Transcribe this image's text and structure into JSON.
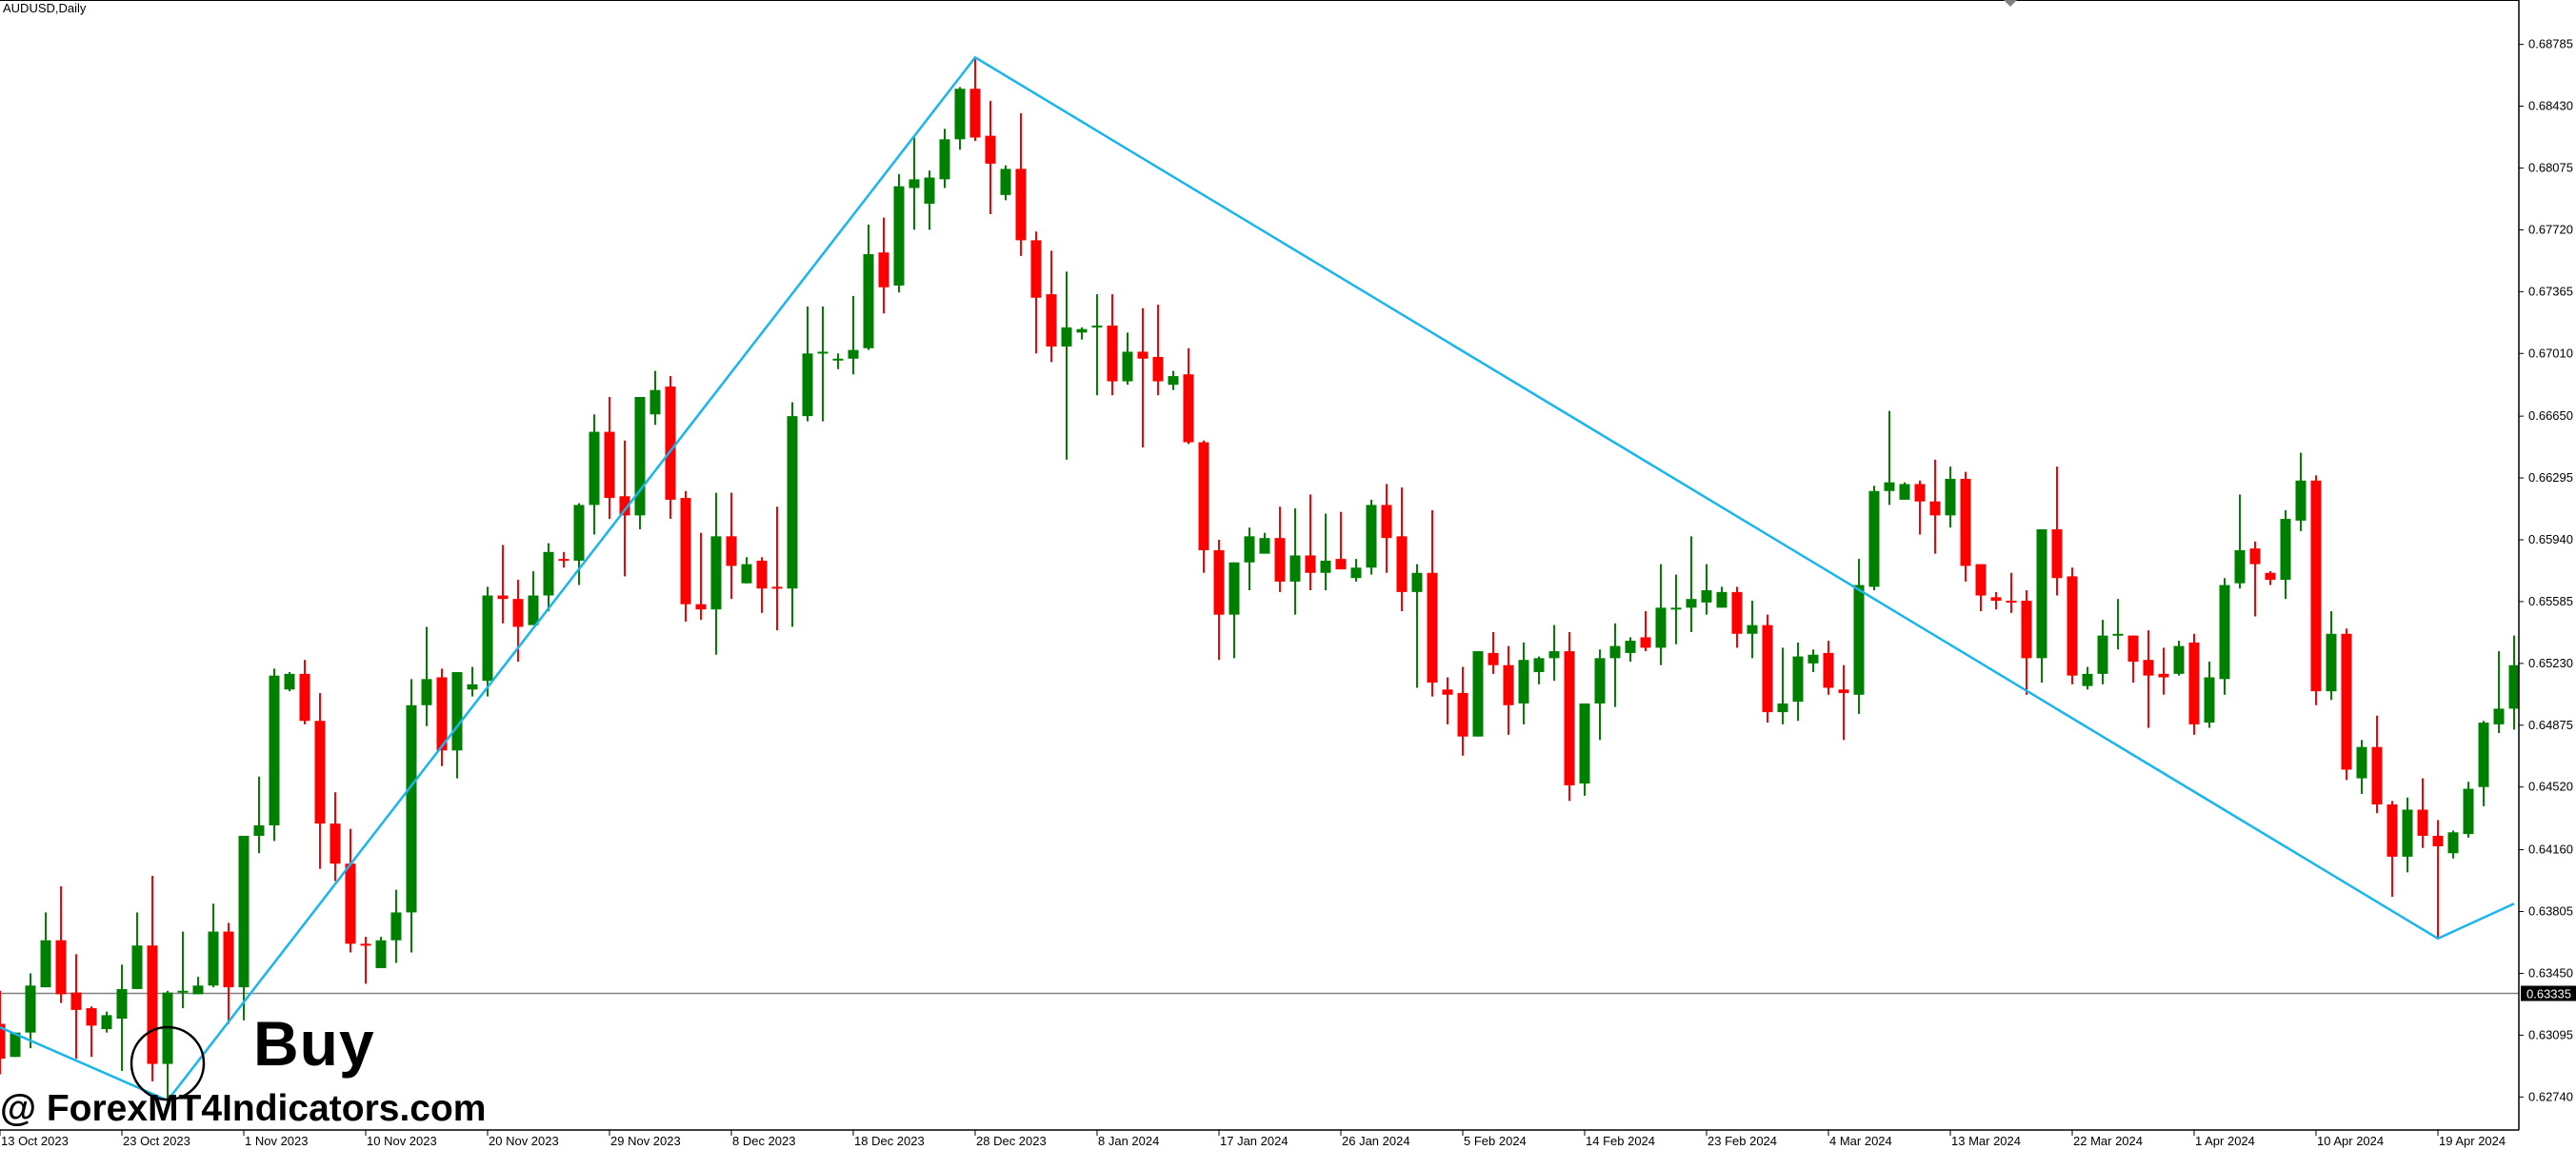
{
  "header": {
    "title": "AUDUSD,Daily"
  },
  "annotations": {
    "signal_label": "Buy",
    "watermark": "@ ForexMT4Indicators.com"
  },
  "colors": {
    "bull": "#008000",
    "bear": "#FF0000",
    "zigzag": "#17B6EE",
    "current_price_line": "#808080",
    "axis": "#000000"
  },
  "chart_data": {
    "type": "candlestick",
    "symbol": "AUDUSD",
    "timeframe": "Daily",
    "ylim": [
      0.6258,
      0.69
    ],
    "grid": false,
    "current_price": "0.63335",
    "current_price_value": 0.63335,
    "y_ticks": [
      "0.68785",
      "0.68430",
      "0.68075",
      "0.67720",
      "0.67365",
      "0.67010",
      "0.66650",
      "0.66295",
      "0.65940",
      "0.65585",
      "0.65230",
      "0.64875",
      "0.64520",
      "0.64160",
      "0.63805",
      "0.63450",
      "0.63095",
      "0.62740"
    ],
    "x_ticks": [
      {
        "label": "13 Oct 2023",
        "date": "2023-10-13"
      },
      {
        "label": "23 Oct 2023",
        "date": "2023-10-23"
      },
      {
        "label": "1 Nov 2023",
        "date": "2023-11-01"
      },
      {
        "label": "10 Nov 2023",
        "date": "2023-11-10"
      },
      {
        "label": "20 Nov 2023",
        "date": "2023-11-20"
      },
      {
        "label": "29 Nov 2023",
        "date": "2023-11-29"
      },
      {
        "label": "8 Dec 2023",
        "date": "2023-12-08"
      },
      {
        "label": "18 Dec 2023",
        "date": "2023-12-18"
      },
      {
        "label": "28 Dec 2023",
        "date": "2023-12-28"
      },
      {
        "label": "8 Jan 2024",
        "date": "2024-01-08"
      },
      {
        "label": "17 Jan 2024",
        "date": "2024-01-17"
      },
      {
        "label": "26 Jan 2024",
        "date": "2024-01-26"
      },
      {
        "label": "5 Feb 2024",
        "date": "2024-02-05"
      },
      {
        "label": "14 Feb 2024",
        "date": "2024-02-14"
      },
      {
        "label": "23 Feb 2024",
        "date": "2024-02-23"
      },
      {
        "label": "4 Mar 2024",
        "date": "2024-03-04"
      },
      {
        "label": "13 Mar 2024",
        "date": "2024-03-13"
      },
      {
        "label": "22 Mar 2024",
        "date": "2024-03-22"
      },
      {
        "label": "1 Apr 2024",
        "date": "2024-04-01"
      },
      {
        "label": "10 Apr 2024",
        "date": "2024-04-10"
      },
      {
        "label": "19 Apr 2024",
        "date": "2024-04-19"
      }
    ],
    "dates": [
      "2023-10-13",
      "2023-10-15",
      "2023-10-16",
      "2023-10-17",
      "2023-10-18",
      "2023-10-19",
      "2023-10-20",
      "2023-10-22",
      "2023-10-23",
      "2023-10-24",
      "2023-10-25",
      "2023-10-26",
      "2023-10-27",
      "2023-10-29",
      "2023-10-30",
      "2023-10-31",
      "2023-11-01",
      "2023-11-02",
      "2023-11-03",
      "2023-11-05",
      "2023-11-06",
      "2023-11-07",
      "2023-11-08",
      "2023-11-09",
      "2023-11-10",
      "2023-11-12",
      "2023-11-13",
      "2023-11-14",
      "2023-11-15",
      "2023-11-16",
      "2023-11-17",
      "2023-11-19",
      "2023-11-20",
      "2023-11-21",
      "2023-11-22",
      "2023-11-23",
      "2023-11-24",
      "2023-11-26",
      "2023-11-27",
      "2023-11-28",
      "2023-11-29",
      "2023-11-30",
      "2023-12-01",
      "2023-12-03",
      "2023-12-04",
      "2023-12-05",
      "2023-12-06",
      "2023-12-07",
      "2023-12-08",
      "2023-12-10",
      "2023-12-11",
      "2023-12-12",
      "2023-12-13",
      "2023-12-14",
      "2023-12-15",
      "2023-12-17",
      "2023-12-18",
      "2023-12-19",
      "2023-12-20",
      "2023-12-21",
      "2023-12-22",
      "2023-12-24",
      "2023-12-26",
      "2023-12-27",
      "2023-12-28",
      "2023-12-29",
      "2023-12-31",
      "2024-01-02",
      "2024-01-03",
      "2024-01-04",
      "2024-01-05",
      "2024-01-07",
      "2024-01-08",
      "2024-01-09",
      "2024-01-10",
      "2024-01-11",
      "2024-01-12",
      "2024-01-14",
      "2024-01-15",
      "2024-01-16",
      "2024-01-17",
      "2024-01-18",
      "2024-01-19",
      "2024-01-21",
      "2024-01-22",
      "2024-01-23",
      "2024-01-24",
      "2024-01-25",
      "2024-01-26",
      "2024-01-28",
      "2024-01-29",
      "2024-01-30",
      "2024-01-31",
      "2024-02-01",
      "2024-02-02",
      "2024-02-04",
      "2024-02-05",
      "2024-02-06",
      "2024-02-07",
      "2024-02-08",
      "2024-02-09",
      "2024-02-11",
      "2024-02-12",
      "2024-02-13",
      "2024-02-14",
      "2024-02-15",
      "2024-02-16",
      "2024-02-18",
      "2024-02-19",
      "2024-02-20",
      "2024-02-21",
      "2024-02-22",
      "2024-02-23",
      "2024-02-25",
      "2024-02-26",
      "2024-02-27",
      "2024-02-28",
      "2024-02-29",
      "2024-03-01",
      "2024-03-03",
      "2024-03-04",
      "2024-03-05",
      "2024-03-06",
      "2024-03-07",
      "2024-03-08",
      "2024-03-10",
      "2024-03-11",
      "2024-03-12",
      "2024-03-13",
      "2024-03-14",
      "2024-03-15",
      "2024-03-17",
      "2024-03-18",
      "2024-03-19",
      "2024-03-20",
      "2024-03-21",
      "2024-03-22",
      "2024-03-24",
      "2024-03-25",
      "2024-03-26",
      "2024-03-27",
      "2024-03-28",
      "2024-03-29",
      "2024-03-31",
      "2024-04-01",
      "2024-04-02",
      "2024-04-03",
      "2024-04-04",
      "2024-04-05",
      "2024-04-07",
      "2024-04-08",
      "2024-04-09",
      "2024-04-10",
      "2024-04-11",
      "2024-04-12",
      "2024-04-14",
      "2024-04-15",
      "2024-04-16",
      "2024-04-17",
      "2024-04-18",
      "2024-04-19",
      "2024-04-21",
      "2024-04-22",
      "2024-04-23",
      "2024-04-24",
      "2024-04-25"
    ],
    "ohlc_columns": [
      "open",
      "high",
      "low",
      "close"
    ],
    "ohlc": [
      [
        0.6316,
        0.6335,
        0.6287,
        0.6296
      ],
      [
        0.6297,
        0.6311,
        0.6297,
        0.6311
      ],
      [
        0.6311,
        0.6345,
        0.6302,
        0.6338
      ],
      [
        0.6337,
        0.638,
        0.6337,
        0.6364
      ],
      [
        0.6364,
        0.6395,
        0.6328,
        0.6333
      ],
      [
        0.6334,
        0.6356,
        0.6296,
        0.6324
      ],
      [
        0.6325,
        0.6326,
        0.6297,
        0.6315
      ],
      [
        0.6313,
        0.6323,
        0.6311,
        0.6321
      ],
      [
        0.6319,
        0.635,
        0.6289,
        0.6336
      ],
      [
        0.6336,
        0.638,
        0.6336,
        0.6361
      ],
      [
        0.6361,
        0.6401,
        0.6283,
        0.6293
      ],
      [
        0.6293,
        0.6335,
        0.6272,
        0.6334
      ],
      [
        0.6334,
        0.6369,
        0.6325,
        0.6335
      ],
      [
        0.6333,
        0.6343,
        0.6333,
        0.6338
      ],
      [
        0.6338,
        0.6385,
        0.6337,
        0.6369
      ],
      [
        0.6369,
        0.6374,
        0.6316,
        0.6337
      ],
      [
        0.6337,
        0.6424,
        0.6318,
        0.6424
      ],
      [
        0.6424,
        0.6458,
        0.6414,
        0.643
      ],
      [
        0.643,
        0.652,
        0.6421,
        0.6516
      ],
      [
        0.6508,
        0.6518,
        0.6507,
        0.6517
      ],
      [
        0.6517,
        0.6525,
        0.6488,
        0.649
      ],
      [
        0.649,
        0.6506,
        0.6405,
        0.6431
      ],
      [
        0.6431,
        0.6449,
        0.6398,
        0.6408
      ],
      [
        0.6408,
        0.6428,
        0.6357,
        0.6362
      ],
      [
        0.6362,
        0.6366,
        0.6339,
        0.6361
      ],
      [
        0.6348,
        0.6366,
        0.6348,
        0.6364
      ],
      [
        0.6364,
        0.6393,
        0.6351,
        0.638
      ],
      [
        0.638,
        0.6514,
        0.6357,
        0.6499
      ],
      [
        0.6499,
        0.6544,
        0.6487,
        0.6514
      ],
      [
        0.6515,
        0.652,
        0.6464,
        0.6473
      ],
      [
        0.6473,
        0.6518,
        0.6457,
        0.6518
      ],
      [
        0.6508,
        0.6521,
        0.6504,
        0.6511
      ],
      [
        0.6513,
        0.6567,
        0.6504,
        0.6562
      ],
      [
        0.6562,
        0.6591,
        0.6546,
        0.656
      ],
      [
        0.656,
        0.6571,
        0.6524,
        0.6544
      ],
      [
        0.6545,
        0.6576,
        0.6545,
        0.6562
      ],
      [
        0.6562,
        0.6592,
        0.6553,
        0.6587
      ],
      [
        0.6583,
        0.6587,
        0.6578,
        0.6582
      ],
      [
        0.6582,
        0.6615,
        0.6568,
        0.6614
      ],
      [
        0.6614,
        0.6666,
        0.6597,
        0.6656
      ],
      [
        0.6656,
        0.6676,
        0.6606,
        0.6618
      ],
      [
        0.6619,
        0.6651,
        0.6573,
        0.6608
      ],
      [
        0.6608,
        0.6676,
        0.66,
        0.6676
      ],
      [
        0.6666,
        0.6691,
        0.666,
        0.668
      ],
      [
        0.6682,
        0.6688,
        0.6606,
        0.6617
      ],
      [
        0.6618,
        0.6622,
        0.6547,
        0.6557
      ],
      [
        0.6557,
        0.6598,
        0.6548,
        0.6554
      ],
      [
        0.6554,
        0.6621,
        0.6528,
        0.6596
      ],
      [
        0.6596,
        0.6621,
        0.656,
        0.6579
      ],
      [
        0.6569,
        0.6584,
        0.6569,
        0.658
      ],
      [
        0.6582,
        0.6584,
        0.6552,
        0.6566
      ],
      [
        0.6567,
        0.6613,
        0.6542,
        0.6566
      ],
      [
        0.6566,
        0.6673,
        0.6544,
        0.6665
      ],
      [
        0.6665,
        0.6728,
        0.6662,
        0.6701
      ],
      [
        0.6701,
        0.6728,
        0.6662,
        0.6702
      ],
      [
        0.6697,
        0.6701,
        0.6692,
        0.6698
      ],
      [
        0.6698,
        0.6734,
        0.6689,
        0.6703
      ],
      [
        0.6704,
        0.6775,
        0.6703,
        0.6758
      ],
      [
        0.6759,
        0.6779,
        0.6724,
        0.6739
      ],
      [
        0.674,
        0.6804,
        0.6736,
        0.6797
      ],
      [
        0.6796,
        0.6825,
        0.6772,
        0.6801
      ],
      [
        0.6787,
        0.6806,
        0.6772,
        0.6802
      ],
      [
        0.6801,
        0.683,
        0.6796,
        0.6824
      ],
      [
        0.6824,
        0.6854,
        0.6818,
        0.6853
      ],
      [
        0.6853,
        0.6871,
        0.6823,
        0.6825
      ],
      [
        0.6826,
        0.6846,
        0.6781,
        0.681
      ],
      [
        0.6792,
        0.6809,
        0.6789,
        0.6807
      ],
      [
        0.6807,
        0.6839,
        0.6757,
        0.6766
      ],
      [
        0.6766,
        0.6771,
        0.6701,
        0.6733
      ],
      [
        0.6735,
        0.676,
        0.6696,
        0.6705
      ],
      [
        0.6705,
        0.6748,
        0.664,
        0.6716
      ],
      [
        0.6713,
        0.6716,
        0.6709,
        0.6715
      ],
      [
        0.6716,
        0.6735,
        0.6677,
        0.6717
      ],
      [
        0.6717,
        0.6735,
        0.6677,
        0.6685
      ],
      [
        0.6685,
        0.6713,
        0.6683,
        0.6702
      ],
      [
        0.6702,
        0.6727,
        0.6647,
        0.6698
      ],
      [
        0.6699,
        0.6729,
        0.6677,
        0.6685
      ],
      [
        0.6683,
        0.6691,
        0.668,
        0.6688
      ],
      [
        0.6689,
        0.6704,
        0.6649,
        0.665
      ],
      [
        0.665,
        0.6651,
        0.6575,
        0.6588
      ],
      [
        0.6588,
        0.6594,
        0.6525,
        0.6551
      ],
      [
        0.6551,
        0.6581,
        0.6526,
        0.6581
      ],
      [
        0.6581,
        0.6601,
        0.6565,
        0.6596
      ],
      [
        0.6586,
        0.6598,
        0.6586,
        0.6595
      ],
      [
        0.6595,
        0.6613,
        0.6564,
        0.657
      ],
      [
        0.657,
        0.6612,
        0.6551,
        0.6585
      ],
      [
        0.6585,
        0.662,
        0.6565,
        0.6575
      ],
      [
        0.6575,
        0.6609,
        0.6565,
        0.6582
      ],
      [
        0.6583,
        0.661,
        0.6577,
        0.6577
      ],
      [
        0.6572,
        0.6583,
        0.657,
        0.6578
      ],
      [
        0.6578,
        0.6617,
        0.6574,
        0.6614
      ],
      [
        0.6614,
        0.6626,
        0.6575,
        0.6595
      ],
      [
        0.6596,
        0.6624,
        0.6553,
        0.6564
      ],
      [
        0.6564,
        0.658,
        0.6509,
        0.6575
      ],
      [
        0.6575,
        0.6611,
        0.6504,
        0.6512
      ],
      [
        0.6508,
        0.6515,
        0.6488,
        0.6505
      ],
      [
        0.6506,
        0.6521,
        0.647,
        0.6481
      ],
      [
        0.6481,
        0.653,
        0.6481,
        0.653
      ],
      [
        0.6529,
        0.6541,
        0.6517,
        0.6522
      ],
      [
        0.6522,
        0.6533,
        0.6482,
        0.6499
      ],
      [
        0.65,
        0.6535,
        0.6488,
        0.6525
      ],
      [
        0.6518,
        0.6527,
        0.6511,
        0.6526
      ],
      [
        0.6526,
        0.6545,
        0.6513,
        0.653
      ],
      [
        0.653,
        0.6541,
        0.6444,
        0.6453
      ],
      [
        0.6454,
        0.65,
        0.6447,
        0.65
      ],
      [
        0.65,
        0.6531,
        0.6479,
        0.6526
      ],
      [
        0.6526,
        0.6546,
        0.6498,
        0.6533
      ],
      [
        0.6529,
        0.6538,
        0.6524,
        0.6536
      ],
      [
        0.6538,
        0.6553,
        0.653,
        0.6532
      ],
      [
        0.6532,
        0.658,
        0.6522,
        0.6555
      ],
      [
        0.6555,
        0.6574,
        0.6534,
        0.6555
      ],
      [
        0.6555,
        0.6596,
        0.6541,
        0.656
      ],
      [
        0.6558,
        0.658,
        0.6551,
        0.6565
      ],
      [
        0.6555,
        0.6567,
        0.6555,
        0.6564
      ],
      [
        0.6564,
        0.6567,
        0.6532,
        0.654
      ],
      [
        0.654,
        0.6559,
        0.6526,
        0.6545
      ],
      [
        0.6545,
        0.6551,
        0.6489,
        0.6495
      ],
      [
        0.6495,
        0.6532,
        0.6488,
        0.65
      ],
      [
        0.6501,
        0.6535,
        0.649,
        0.6527
      ],
      [
        0.6523,
        0.6531,
        0.6518,
        0.6528
      ],
      [
        0.6529,
        0.6536,
        0.6505,
        0.6509
      ],
      [
        0.6508,
        0.6522,
        0.6479,
        0.6506
      ],
      [
        0.6505,
        0.6583,
        0.6494,
        0.6568
      ],
      [
        0.6567,
        0.6625,
        0.6565,
        0.6622
      ],
      [
        0.6622,
        0.6668,
        0.6614,
        0.6627
      ],
      [
        0.6617,
        0.6627,
        0.6617,
        0.6626
      ],
      [
        0.6626,
        0.6628,
        0.6597,
        0.6616
      ],
      [
        0.6616,
        0.664,
        0.6586,
        0.6608
      ],
      [
        0.6608,
        0.6636,
        0.6601,
        0.6629
      ],
      [
        0.6629,
        0.6633,
        0.657,
        0.6579
      ],
      [
        0.658,
        0.658,
        0.6553,
        0.6562
      ],
      [
        0.6561,
        0.6564,
        0.6554,
        0.6559
      ],
      [
        0.6559,
        0.6575,
        0.6552,
        0.6558
      ],
      [
        0.6559,
        0.6565,
        0.6505,
        0.6526
      ],
      [
        0.6526,
        0.66,
        0.6512,
        0.66
      ],
      [
        0.66,
        0.6636,
        0.6562,
        0.6572
      ],
      [
        0.6573,
        0.6578,
        0.6511,
        0.6516
      ],
      [
        0.651,
        0.6521,
        0.6508,
        0.6517
      ],
      [
        0.6517,
        0.6548,
        0.6511,
        0.6539
      ],
      [
        0.6539,
        0.656,
        0.6531,
        0.654
      ],
      [
        0.6539,
        0.6539,
        0.6512,
        0.6524
      ],
      [
        0.6525,
        0.6542,
        0.6486,
        0.6516
      ],
      [
        0.6517,
        0.6532,
        0.6505,
        0.6515
      ],
      [
        0.6517,
        0.6536,
        0.6516,
        0.6533
      ],
      [
        0.6535,
        0.654,
        0.6482,
        0.6488
      ],
      [
        0.6489,
        0.6524,
        0.6486,
        0.6515
      ],
      [
        0.6514,
        0.6572,
        0.6505,
        0.6568
      ],
      [
        0.6569,
        0.662,
        0.6566,
        0.6588
      ],
      [
        0.6589,
        0.6593,
        0.655,
        0.658
      ],
      [
        0.6575,
        0.6576,
        0.6568,
        0.6571
      ],
      [
        0.6571,
        0.6611,
        0.656,
        0.6606
      ],
      [
        0.6605,
        0.6644,
        0.6599,
        0.6628
      ],
      [
        0.6628,
        0.6631,
        0.6499,
        0.6507
      ],
      [
        0.6507,
        0.6553,
        0.6502,
        0.654
      ],
      [
        0.654,
        0.6543,
        0.6456,
        0.6462
      ],
      [
        0.6457,
        0.6479,
        0.6448,
        0.6475
      ],
      [
        0.6475,
        0.6493,
        0.6437,
        0.6442
      ],
      [
        0.6442,
        0.6444,
        0.6389,
        0.6412
      ],
      [
        0.6412,
        0.6446,
        0.6403,
        0.6439
      ],
      [
        0.6439,
        0.6457,
        0.6417,
        0.6424
      ],
      [
        0.6424,
        0.6433,
        0.6365,
        0.6418
      ],
      [
        0.6414,
        0.6427,
        0.6411,
        0.6426
      ],
      [
        0.6425,
        0.6455,
        0.6423,
        0.6451
      ],
      [
        0.6452,
        0.649,
        0.6441,
        0.6489
      ],
      [
        0.6488,
        0.653,
        0.6483,
        0.6497
      ],
      [
        0.6497,
        0.6539,
        0.6485,
        0.6522
      ]
    ],
    "zigzag": [
      {
        "date": "2023-10-13",
        "price": 0.6314
      },
      {
        "date": "2023-10-26",
        "price": 0.6272
      },
      {
        "date": "2023-12-28",
        "price": 0.6871
      },
      {
        "date": "2024-04-19",
        "price": 0.6365
      },
      {
        "date": "2024-04-25",
        "price": 0.6385
      }
    ],
    "signal": {
      "type": "Buy",
      "date": "2023-10-26"
    }
  }
}
